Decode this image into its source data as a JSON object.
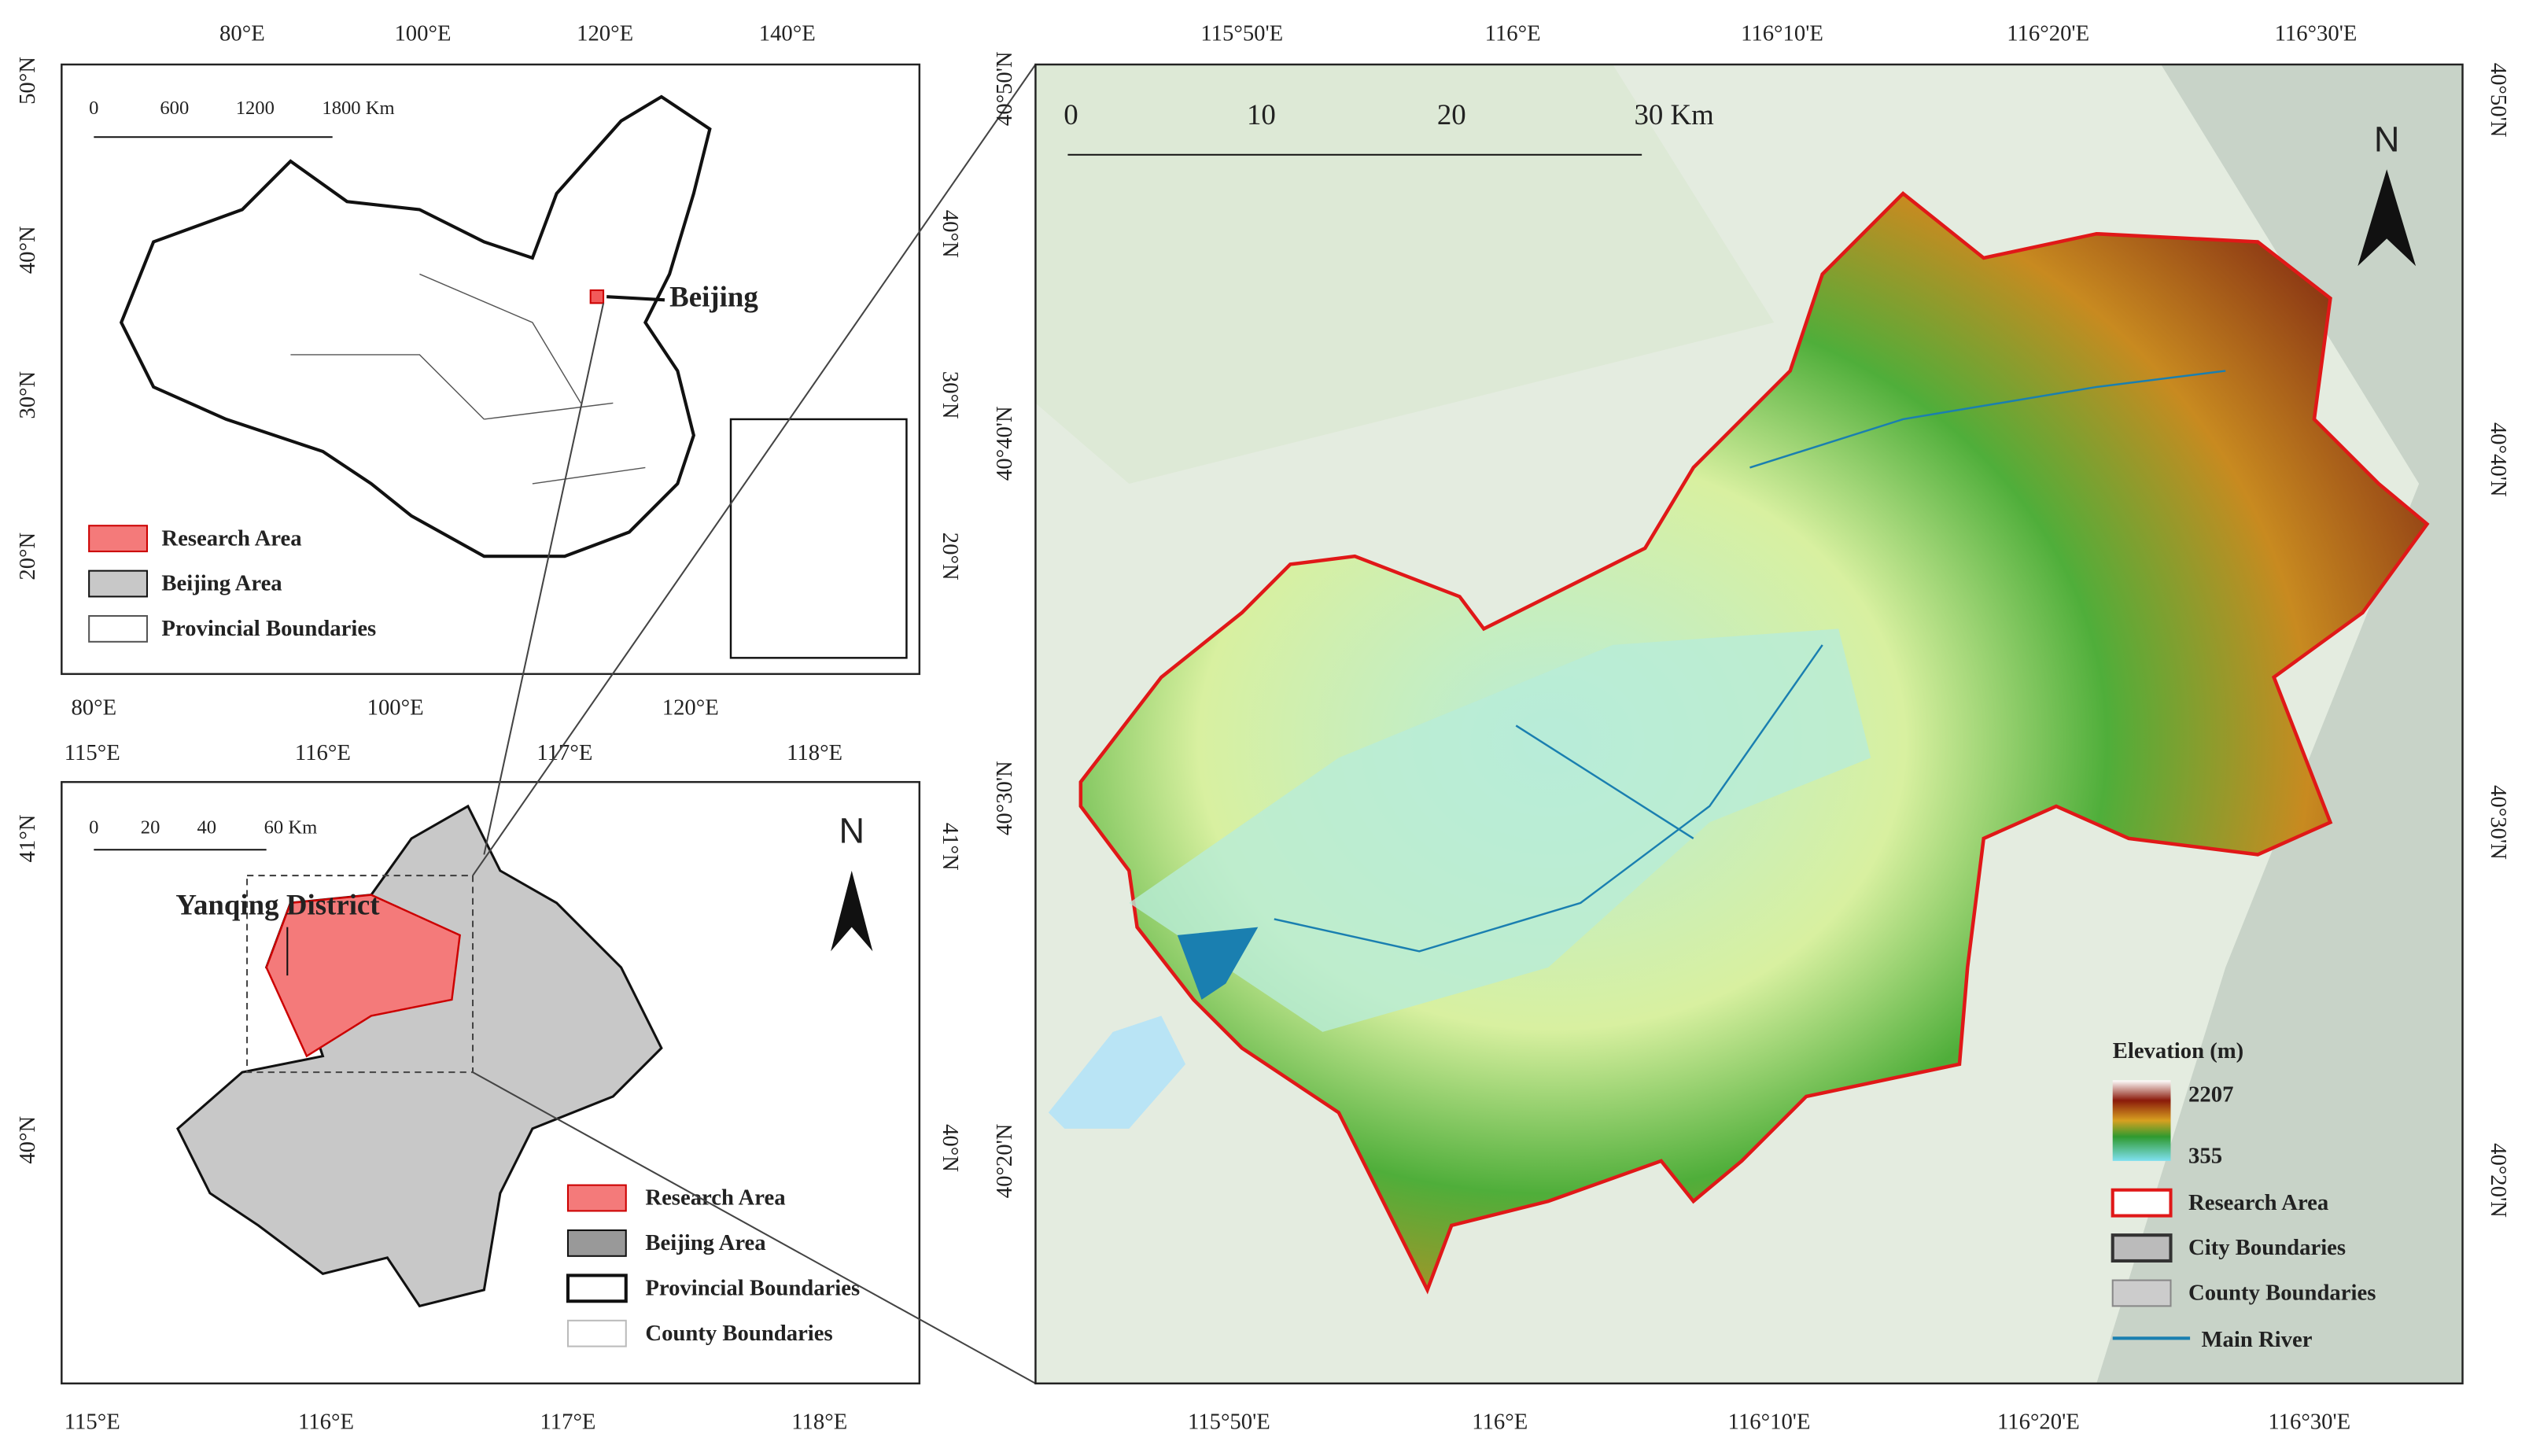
{
  "china_map": {
    "top_labels": [
      "80°E",
      "100°E",
      "120°E",
      "140°E"
    ],
    "bottom_labels": [
      "80°E",
      "100°E",
      "120°E"
    ],
    "left_labels": [
      "50°N",
      "40°N",
      "30°N",
      "20°N"
    ],
    "right_labels": [
      "40°N",
      "30°N",
      "20°N"
    ],
    "scale_bar": [
      "0",
      "600",
      "1200",
      "1800 Km"
    ],
    "callout": "Beijing",
    "legend": [
      "Research Area",
      "Beijing Area",
      "Provincial Boundaries"
    ]
  },
  "beijing_map": {
    "top_labels": [
      "115°E",
      "116°E",
      "117°E",
      "118°E"
    ],
    "bottom_labels": [
      "115°E",
      "116°E",
      "117°E",
      "118°E"
    ],
    "left_labels": [
      "41°N",
      "40°N"
    ],
    "right_labels": [
      "41°N",
      "40°N"
    ],
    "scale_bar": [
      "0",
      "20",
      "40",
      "60 Km"
    ],
    "callout": "Yanqing District",
    "north": "N",
    "legend": [
      "Research Area",
      "Beijing Area",
      "Provincial Boundaries",
      "County Boundaries"
    ]
  },
  "yanqing_map": {
    "top_labels": [
      "115°50'E",
      "116°E",
      "116°10'E",
      "116°20'E",
      "116°30'E"
    ],
    "bottom_labels": [
      "115°50'E",
      "116°E",
      "116°10'E",
      "116°20'E",
      "116°30'E"
    ],
    "left_labels": [
      "40°50'N",
      "40°40'N",
      "40°30'N",
      "40°20'N"
    ],
    "right_labels": [
      "40°50'N",
      "40°40'N",
      "40°30'N",
      "40°20'N"
    ],
    "scale_bar": [
      "0",
      "10",
      "20",
      "30 Km"
    ],
    "north": "N",
    "legend": {
      "title": "Elevation (m)",
      "max": "2207",
      "min": "355",
      "items": [
        "Research Area",
        "City Boundaries",
        "County Boundaries",
        "Main River"
      ]
    }
  }
}
